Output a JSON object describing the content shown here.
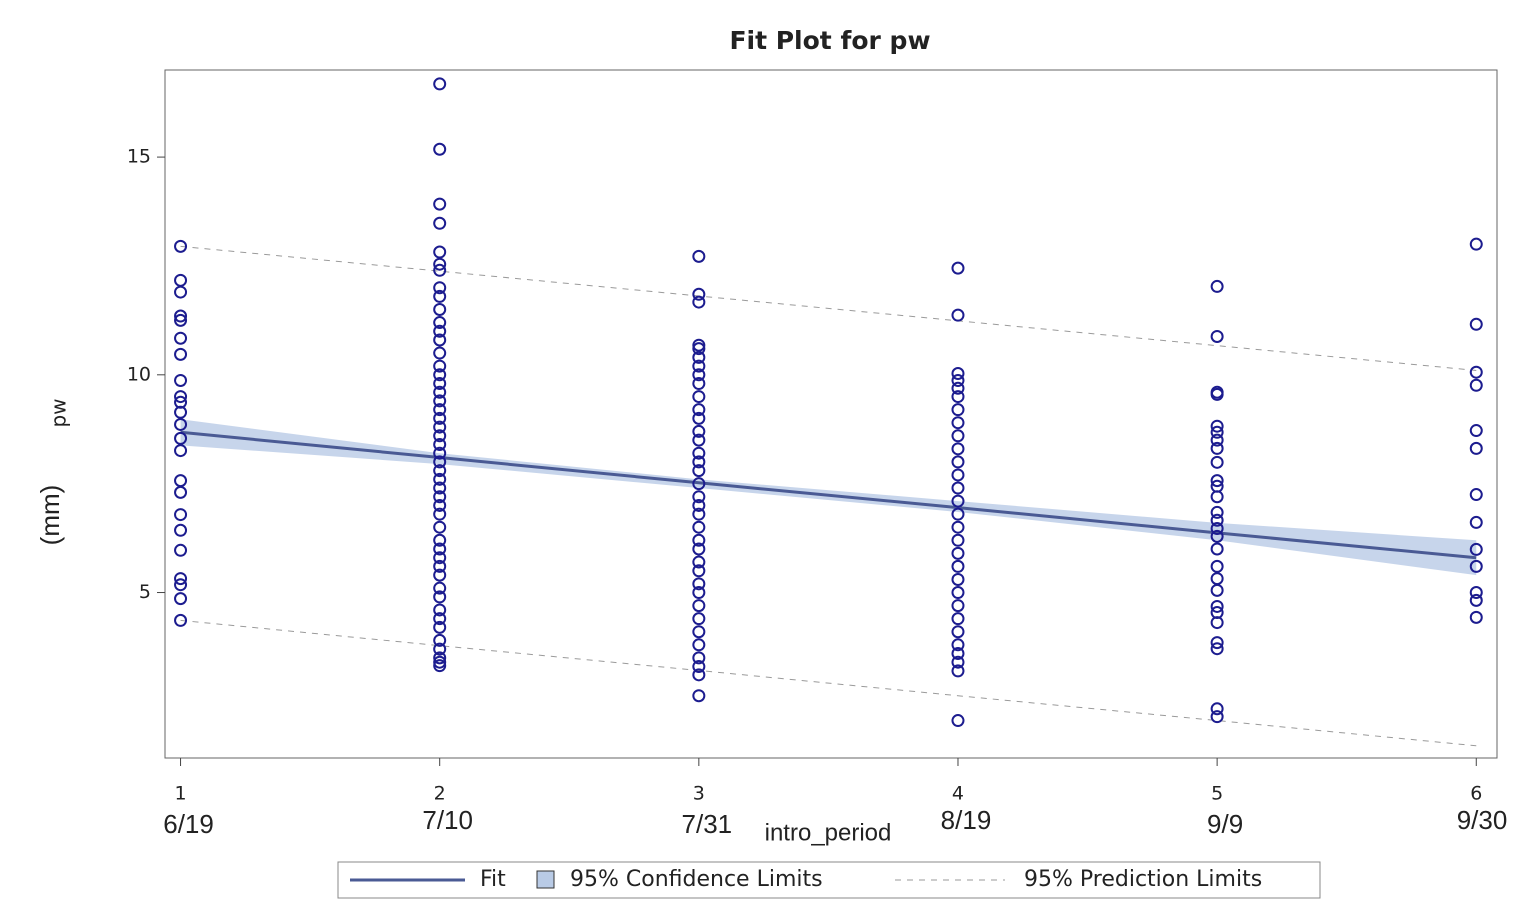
{
  "chart_data": {
    "type": "scatter",
    "title": "Fit Plot for pw",
    "x_label": "intro_period",
    "y_label": "pw",
    "y_unit_label": "(mm)",
    "xlim": [
      0.94,
      6.08
    ],
    "ylim": [
      1.2,
      17
    ],
    "xticks": [
      1,
      2,
      3,
      4,
      5,
      6
    ],
    "xtick_dates": [
      "6/19",
      "7/10",
      "7/31",
      "8/19",
      "9/9",
      "9/30"
    ],
    "yticks": [
      5,
      10,
      15
    ],
    "point_color": "#1c1c8f",
    "groups": [
      {
        "x": 1,
        "values": [
          12.95,
          12.17,
          11.9,
          11.35,
          11.25,
          10.84,
          10.47,
          9.87,
          9.5,
          9.37,
          9.14,
          8.86,
          8.54,
          8.26,
          7.57,
          7.3,
          6.79,
          6.43,
          5.97,
          5.32,
          5.18,
          4.86,
          4.36
        ]
      },
      {
        "x": 2,
        "values": [
          16.68,
          15.18,
          13.92,
          13.48,
          12.82,
          12.54,
          12.4,
          12.0,
          11.8,
          11.5,
          11.2,
          11.0,
          10.8,
          10.5,
          10.2,
          10.0,
          9.8,
          9.6,
          9.4,
          9.2,
          9.0,
          8.8,
          8.6,
          8.4,
          8.2,
          8.0,
          7.8,
          7.6,
          7.4,
          7.2,
          7.0,
          6.8,
          6.5,
          6.2,
          6.0,
          5.8,
          5.6,
          5.4,
          5.1,
          4.9,
          4.6,
          4.4,
          4.2,
          3.9,
          3.7,
          3.5,
          3.4,
          3.32
        ]
      },
      {
        "x": 3,
        "values": [
          12.72,
          11.85,
          11.67,
          10.68,
          10.6,
          10.4,
          10.2,
          10.0,
          9.8,
          9.5,
          9.2,
          9.0,
          8.7,
          8.5,
          8.2,
          8.0,
          7.8,
          7.5,
          7.2,
          7.0,
          6.8,
          6.5,
          6.2,
          6.0,
          5.7,
          5.5,
          5.2,
          5.0,
          4.7,
          4.4,
          4.1,
          3.8,
          3.5,
          3.3,
          3.11,
          2.63
        ]
      },
      {
        "x": 4,
        "values": [
          12.45,
          11.37,
          10.03,
          9.87,
          9.69,
          9.5,
          9.2,
          8.9,
          8.6,
          8.3,
          8.0,
          7.7,
          7.4,
          7.1,
          6.8,
          6.5,
          6.2,
          5.9,
          5.6,
          5.3,
          5.0,
          4.7,
          4.4,
          4.1,
          3.8,
          3.6,
          3.4,
          3.2,
          2.06
        ]
      },
      {
        "x": 5,
        "values": [
          12.03,
          10.88,
          9.6,
          9.55,
          8.82,
          8.68,
          8.5,
          8.31,
          7.99,
          7.57,
          7.44,
          7.2,
          6.84,
          6.66,
          6.47,
          6.29,
          6.0,
          5.6,
          5.32,
          5.05,
          4.68,
          4.54,
          4.31,
          3.85,
          3.71,
          2.33,
          2.15
        ]
      },
      {
        "x": 6,
        "values": [
          13.0,
          11.16,
          10.06,
          9.76,
          8.72,
          8.31,
          7.25,
          6.61,
          5.99,
          5.6,
          5.0,
          4.82,
          4.43
        ]
      }
    ],
    "fit": {
      "name": "Fit",
      "color": "#4a5a94",
      "x": [
        1,
        2,
        3,
        4,
        5,
        6
      ],
      "values": [
        8.68,
        8.1,
        7.52,
        6.95,
        6.37,
        5.8
      ]
    },
    "confidence": {
      "name": "95% Confidence Limits",
      "color": "#b9cbe6",
      "lower": [
        8.38,
        7.95,
        7.4,
        6.85,
        6.2,
        5.4
      ],
      "upper": [
        8.98,
        8.2,
        7.6,
        7.1,
        6.6,
        6.2
      ]
    },
    "prediction": {
      "name": "95% Prediction Limits",
      "color": "#9a9a9a",
      "lower": [
        4.36,
        3.78,
        3.21,
        2.63,
        2.06,
        1.48
      ],
      "upper": [
        12.95,
        12.38,
        11.81,
        11.24,
        10.67,
        10.1
      ]
    }
  }
}
